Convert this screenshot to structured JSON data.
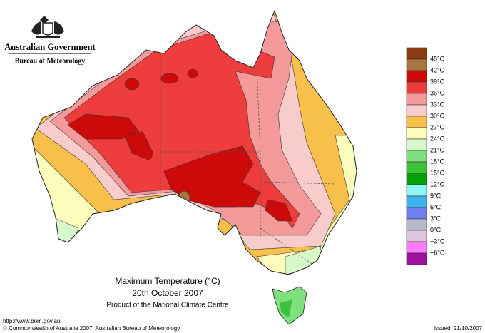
{
  "header": {
    "agency": "Australian Government",
    "bureau": "Bureau of Meteorology"
  },
  "legend": {
    "labels": [
      "45°C",
      "42°C",
      "39°C",
      "36°C",
      "33°C",
      "30°C",
      "27°C",
      "24°C",
      "21°C",
      "18°C",
      "15°C",
      "12°C",
      "9°C",
      "6°C",
      "3°C",
      "0°C",
      "−3°C",
      "−6°C"
    ],
    "colors": [
      "#8b3a12",
      "#a8753f",
      "#cc0a0a",
      "#ee3d3d",
      "#f49a9a",
      "#f9cccc",
      "#f8c04a",
      "#fcfcbc",
      "#d9f8c9",
      "#7fe07f",
      "#3cc23c",
      "#05a005",
      "#8ff4f4",
      "#3fb3ee",
      "#6f7ef2",
      "#b8b8cc",
      "#e0c7e0",
      "#fc7cfc",
      "#a010a0"
    ]
  },
  "map": {
    "title": "Maximum Temperature (°C)",
    "date": "20th October 2007",
    "product": "Product of the National Climate Centre"
  },
  "footer": {
    "url": "http://www.bom.gov.au",
    "copyright": "© Commonwealth of Australia 2007, Australian Bureau of Meteorology",
    "issued": "Issued: 21/10/2007"
  }
}
